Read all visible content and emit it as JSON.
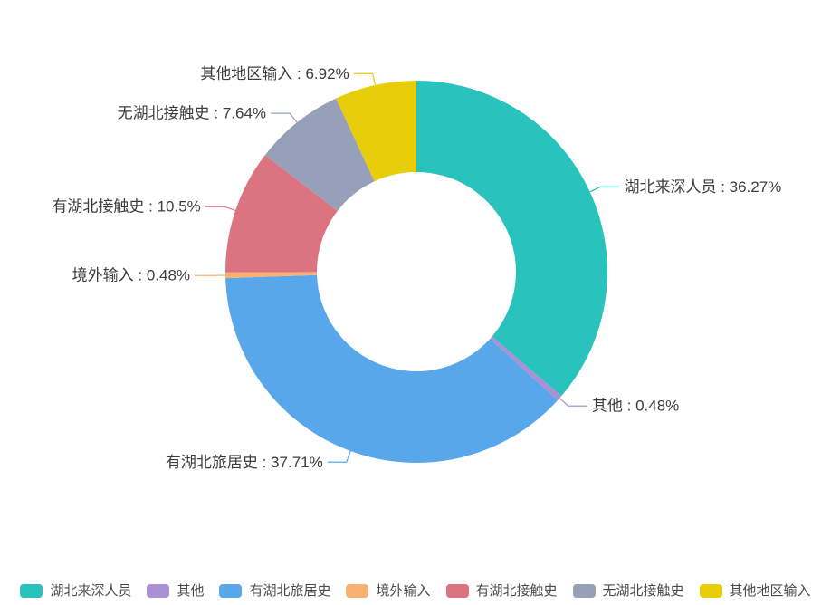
{
  "chart_data": {
    "type": "pie",
    "variant": "donut",
    "title": "",
    "start_angle_deg": 0,
    "direction": "clockwise",
    "unit": "%",
    "label_separator": " : ",
    "background_color": "#ffffff",
    "label_text_color": "#3c3c3c",
    "legend_text_color": "#4a4a4a",
    "legend_position": "bottom",
    "series": [
      {
        "name": "湖北来深人员",
        "value": 36.27,
        "color": "#29c2bd"
      },
      {
        "name": "其他",
        "value": 0.48,
        "color": "#ab90d4"
      },
      {
        "name": "有湖北旅居史",
        "value": 37.71,
        "color": "#57a7ea"
      },
      {
        "name": "境外输入",
        "value": 0.48,
        "color": "#f8b173"
      },
      {
        "name": "有湖北接触史",
        "value": 10.5,
        "color": "#dc7380"
      },
      {
        "name": "无湖北接触史",
        "value": 7.64,
        "color": "#97a0b9"
      },
      {
        "name": "其他地区输入",
        "value": 6.92,
        "color": "#e8ce0a"
      }
    ],
    "labels_shown": [
      "湖北来深人员 : 36.27%",
      "其他 : 0.48%",
      "有湖北旅居史 : 37.71%",
      "境外输入 : 0.48%",
      "有湖北接触史 : 10.5%",
      "无湖北接触史 : 7.64%",
      "其他地区输入 : 6.92%"
    ],
    "legend": [
      "湖北来深人员",
      "其他",
      "有湖北旅居史",
      "境外输入",
      "有湖北接触史",
      "无湖北接触史",
      "其他地区输入"
    ]
  }
}
